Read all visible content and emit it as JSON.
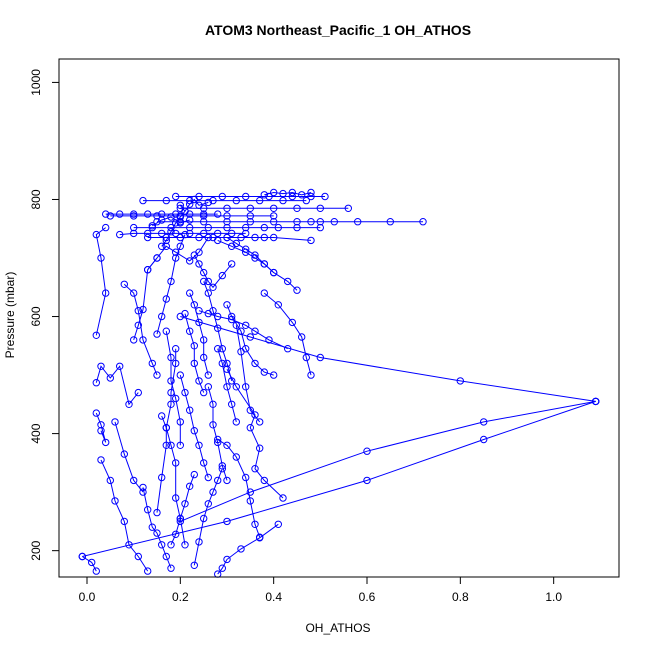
{
  "chart_data": {
    "type": "line",
    "title": "ATOM3 Northeast_Pacific_1 OH_ATHOS",
    "xlabel": "OH_ATHOS",
    "ylabel": "Pressure (mbar)",
    "xlim": [
      -0.06,
      1.14
    ],
    "ylim": [
      1040,
      155
    ],
    "y_inverted": true,
    "x_ticks": [
      0.0,
      0.2,
      0.4,
      0.6,
      0.8,
      1.0
    ],
    "x_tick_labels": [
      "0.0",
      "0.2",
      "0.4",
      "0.6",
      "0.8",
      "1.0"
    ],
    "y_ticks": [
      200,
      400,
      600,
      800,
      1000
    ],
    "y_tick_labels": [
      "200",
      "400",
      "600",
      "800",
      "1000"
    ],
    "grid": false,
    "series_color": "#0000ff",
    "series": [
      {
        "x": [
          -0.01,
          0.01,
          0.02
        ],
        "y": [
          190,
          180,
          165
        ]
      },
      {
        "x": [
          0.41,
          0.37,
          0.33,
          0.3,
          0.29,
          0.28
        ],
        "y": [
          245,
          222,
          203,
          185,
          170,
          160
        ]
      },
      {
        "x": [
          0.37,
          0.36,
          0.35,
          0.34,
          0.32,
          0.3,
          0.28
        ],
        "y": [
          223,
          245,
          285,
          325,
          360,
          380,
          390
        ]
      },
      {
        "x": [
          0.42,
          0.38,
          0.36,
          0.37,
          0.35,
          0.36,
          0.32,
          0.3
        ],
        "y": [
          290,
          320,
          340,
          375,
          410,
          432,
          480,
          510
        ]
      },
      {
        "x": [
          0.03,
          0.05,
          0.06,
          0.08,
          0.09,
          0.11,
          0.13
        ],
        "y": [
          355,
          320,
          285,
          250,
          210,
          190,
          165
        ]
      },
      {
        "x": [
          0.03,
          0.04,
          0.03,
          0.02
        ],
        "y": [
          405,
          385,
          415,
          435
        ]
      },
      {
        "x": [
          0.06,
          0.08,
          0.1,
          0.12
        ],
        "y": [
          420,
          365,
          320,
          300
        ]
      },
      {
        "x": [
          0.02,
          0.03,
          0.05,
          0.07,
          0.09,
          0.11
        ],
        "y": [
          487,
          515,
          495,
          515,
          450,
          470
        ]
      },
      {
        "x": [
          0.02,
          0.04,
          0.03,
          0.02,
          0.04
        ],
        "y": [
          568,
          640,
          700,
          740,
          752
        ]
      },
      {
        "x": [
          0.08,
          0.1,
          0.11,
          0.12,
          0.14,
          0.15
        ],
        "y": [
          655,
          640,
          610,
          560,
          520,
          500
        ]
      },
      {
        "x": [
          0.1,
          0.11,
          0.12,
          0.13,
          0.15
        ],
        "y": [
          560,
          585,
          612,
          680,
          700
        ]
      },
      {
        "x": [
          0.12,
          0.13,
          0.14,
          0.15,
          0.16,
          0.17,
          0.18
        ],
        "y": [
          308,
          270,
          240,
          230,
          210,
          190,
          170
        ]
      },
      {
        "x": [
          0.15,
          0.16,
          0.17,
          0.17,
          0.18,
          0.18,
          0.19,
          0.19
        ],
        "y": [
          265,
          325,
          380,
          410,
          450,
          470,
          520,
          545
        ]
      },
      {
        "x": [
          0.16,
          0.17,
          0.18,
          0.19,
          0.19,
          0.2,
          0.21
        ],
        "y": [
          430,
          410,
          380,
          350,
          290,
          255,
          210
        ]
      },
      {
        "x": [
          0.17,
          0.18,
          0.18,
          0.19,
          0.2,
          0.2
        ],
        "y": [
          575,
          530,
          490,
          460,
          420,
          380
        ]
      },
      {
        "x": [
          0.15,
          0.16,
          0.17,
          0.18,
          0.19,
          0.2,
          0.21
        ],
        "y": [
          570,
          600,
          630,
          660,
          700,
          720,
          740
        ]
      },
      {
        "x": [
          0.18,
          0.19,
          0.2,
          0.21,
          0.22,
          0.23
        ],
        "y": [
          210,
          228,
          255,
          280,
          310,
          330
        ]
      },
      {
        "x": [
          0.2,
          0.21,
          0.22,
          0.23,
          0.24,
          0.25,
          0.26
        ],
        "y": [
          500,
          470,
          440,
          405,
          380,
          350,
          325
        ]
      },
      {
        "x": [
          0.21,
          0.22,
          0.23,
          0.23,
          0.24,
          0.25
        ],
        "y": [
          605,
          575,
          550,
          520,
          490,
          470
        ]
      },
      {
        "x": [
          0.22,
          0.23,
          0.24,
          0.25,
          0.25,
          0.26
        ],
        "y": [
          640,
          620,
          590,
          560,
          530,
          500
        ]
      },
      {
        "x": [
          0.23,
          0.24,
          0.25,
          0.26,
          0.27,
          0.28,
          0.29
        ],
        "y": [
          175,
          215,
          255,
          280,
          300,
          320,
          340
        ]
      },
      {
        "x": [
          0.26,
          0.27,
          0.27,
          0.28,
          0.29,
          0.3
        ],
        "y": [
          480,
          450,
          415,
          385,
          345,
          320
        ]
      },
      {
        "x": [
          0.25,
          0.26,
          0.27,
          0.28,
          0.29,
          0.3,
          0.31
        ],
        "y": [
          660,
          640,
          610,
          580,
          545,
          520,
          490
        ]
      },
      {
        "x": [
          0.28,
          0.29,
          0.3,
          0.31,
          0.32
        ],
        "y": [
          545,
          520,
          480,
          450,
          420
        ]
      },
      {
        "x": [
          0.32,
          0.33,
          0.34,
          0.35,
          0.37
        ],
        "y": [
          585,
          540,
          480,
          440,
          420
        ]
      },
      {
        "x": [
          0.3,
          0.31,
          0.33,
          0.34,
          0.36,
          0.38,
          0.4
        ],
        "y": [
          620,
          600,
          575,
          545,
          520,
          505,
          500
        ]
      },
      {
        "x": [
          0.43,
          0.39,
          0.36,
          0.34,
          0.31,
          0.28,
          0.26,
          0.24
        ],
        "y": [
          545,
          560,
          575,
          585,
          595,
          600,
          605,
          610
        ]
      },
      {
        "x": [
          1.09,
          0.85,
          0.6,
          0.35,
          0.2
        ],
        "y": [
          455,
          420,
          370,
          300,
          250
        ]
      },
      {
        "x": [
          1.09,
          0.8,
          0.5,
          0.35,
          0.2
        ],
        "y": [
          455,
          490,
          530,
          565,
          600
        ]
      },
      {
        "x": [
          -0.01,
          0.3,
          0.6,
          0.85,
          1.09
        ],
        "y": [
          190,
          250,
          320,
          390,
          455
        ]
      },
      {
        "x": [
          0.48,
          0.47,
          0.46,
          0.44,
          0.41,
          0.38
        ],
        "y": [
          500,
          530,
          565,
          590,
          620,
          640
        ]
      },
      {
        "x": [
          0.45,
          0.43,
          0.4,
          0.38,
          0.36,
          0.34,
          0.32,
          0.3
        ],
        "y": [
          645,
          660,
          675,
          690,
          705,
          715,
          725,
          735
        ]
      },
      {
        "x": [
          0.4,
          0.38,
          0.36,
          0.34,
          0.31,
          0.28
        ],
        "y": [
          675,
          690,
          700,
          710,
          720,
          730
        ]
      },
      {
        "x": [
          0.23,
          0.24,
          0.25,
          0.26,
          0.27,
          0.29,
          0.31
        ],
        "y": [
          705,
          690,
          675,
          660,
          650,
          670,
          690
        ]
      },
      {
        "x": [
          0.13,
          0.15,
          0.17,
          0.19,
          0.22,
          0.24,
          0.26
        ],
        "y": [
          680,
          700,
          720,
          710,
          695,
          710,
          735
        ]
      },
      {
        "x": [
          0.13,
          0.17,
          0.2,
          0.24,
          0.27,
          0.3,
          0.33,
          0.36,
          0.38,
          0.4,
          0.48
        ],
        "y": [
          735,
          735,
          735,
          735,
          735,
          735,
          735,
          735,
          735,
          735,
          730
        ]
      },
      {
        "x": [
          0.07,
          0.1,
          0.13,
          0.16,
          0.19,
          0.22,
          0.25,
          0.28,
          0.31,
          0.34
        ],
        "y": [
          740,
          742,
          742,
          742,
          742,
          742,
          742,
          742,
          742,
          742
        ]
      },
      {
        "x": [
          0.1,
          0.14,
          0.18,
          0.22,
          0.26,
          0.3,
          0.34,
          0.38,
          0.41,
          0.45,
          0.5
        ],
        "y": [
          752,
          752,
          752,
          752,
          752,
          752,
          752,
          752,
          752,
          752,
          752
        ]
      },
      {
        "x": [
          0.15,
          0.2,
          0.25,
          0.3,
          0.35,
          0.4,
          0.45,
          0.48,
          0.5,
          0.53,
          0.58,
          0.65,
          0.72
        ],
        "y": [
          762,
          762,
          762,
          762,
          762,
          762,
          762,
          762,
          762,
          762,
          762,
          762,
          762
        ]
      },
      {
        "x": [
          0.04,
          0.07,
          0.1,
          0.13,
          0.16,
          0.19,
          0.22,
          0.25,
          0.28
        ],
        "y": [
          775,
          775,
          775,
          775,
          775,
          775,
          775,
          775,
          775
        ]
      },
      {
        "x": [
          0.05,
          0.1,
          0.15,
          0.2,
          0.25,
          0.3,
          0.35,
          0.4
        ],
        "y": [
          772,
          772,
          772,
          772,
          772,
          772,
          772,
          772
        ]
      },
      {
        "x": [
          0.2,
          0.25,
          0.3,
          0.35,
          0.4,
          0.45,
          0.5,
          0.56
        ],
        "y": [
          785,
          785,
          785,
          785,
          785,
          785,
          785,
          785
        ]
      },
      {
        "x": [
          0.12,
          0.17,
          0.22,
          0.27,
          0.32,
          0.37,
          0.42,
          0.47
        ],
        "y": [
          798,
          798,
          798,
          798,
          798,
          798,
          798,
          798
        ]
      },
      {
        "x": [
          0.19,
          0.24,
          0.29,
          0.34,
          0.39,
          0.44,
          0.48,
          0.51
        ],
        "y": [
          805,
          805,
          805,
          805,
          805,
          805,
          805,
          805
        ]
      },
      {
        "x": [
          0.38,
          0.4,
          0.42,
          0.44,
          0.46,
          0.48
        ],
        "y": [
          808,
          812,
          810,
          812,
          808,
          812
        ]
      },
      {
        "x": [
          0.2,
          0.21,
          0.22,
          0.23,
          0.24,
          0.26
        ],
        "y": [
          790,
          780,
          792,
          800,
          790,
          795
        ]
      },
      {
        "x": [
          0.14,
          0.16,
          0.18,
          0.2,
          0.22
        ],
        "y": [
          755,
          765,
          770,
          760,
          765
        ]
      },
      {
        "x": [
          0.16,
          0.17,
          0.18,
          0.19,
          0.2,
          0.21
        ],
        "y": [
          720,
          730,
          745,
          760,
          770,
          780
        ]
      }
    ]
  }
}
